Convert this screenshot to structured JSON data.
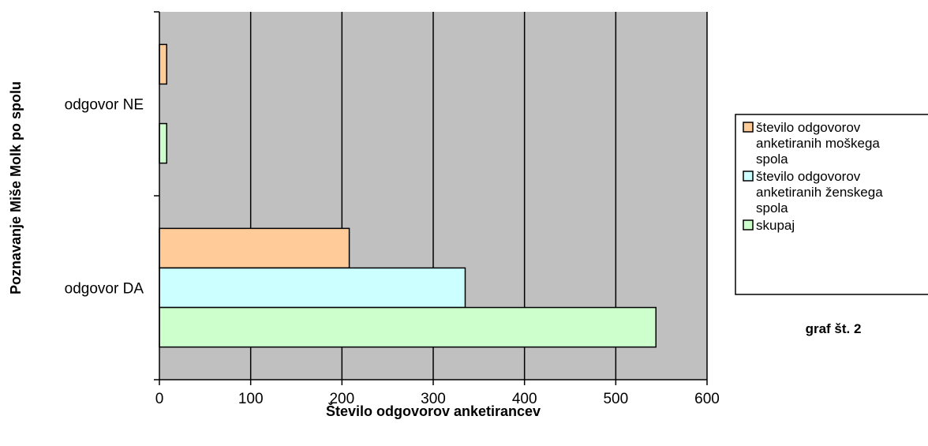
{
  "chart_data": {
    "type": "bar",
    "orientation": "horizontal",
    "categories": [
      "odgovor DA",
      "odgovor NE"
    ],
    "series": [
      {
        "name": "število odgovorov anketiranih moškega spola",
        "values": [
          208,
          8
        ],
        "color": "#FFCC99"
      },
      {
        "name": "število odgovorov anketiranih ženskega spola",
        "values": [
          335,
          0
        ],
        "color": "#CCFFFF"
      },
      {
        "name": "skupaj",
        "values": [
          544,
          8
        ],
        "color": "#CCFFCC"
      }
    ],
    "xlabel": "Število odgovorov anketirancev",
    "ylabel": "Poznavanje Miše Molk po spolu",
    "xlim": [
      0,
      600
    ],
    "xticks": [
      0,
      100,
      200,
      300,
      400,
      500,
      600
    ],
    "grid": true,
    "plot_background": "#C0C0C0",
    "legend_position": "right",
    "legend_entries": [
      [
        "število odgovorov",
        "anketiranih moškega",
        "spola"
      ],
      [
        "število odgovorov",
        "anketiranih ženskega",
        "spola"
      ],
      [
        "skupaj"
      ]
    ],
    "note": "graf št. 2"
  }
}
